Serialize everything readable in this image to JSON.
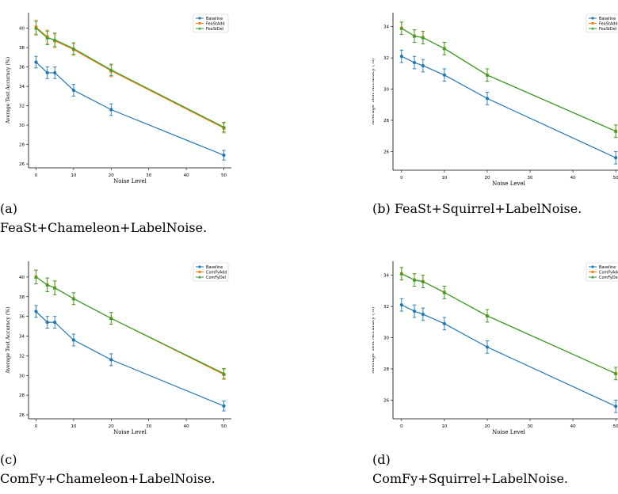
{
  "colors": {
    "baseline": "#1f77b4",
    "add": "#ff7f0e",
    "del": "#2ca02c"
  },
  "chart_data": [
    {
      "type": "line",
      "panel_label": "(a)",
      "caption": "FeaSt+Chameleon+LabelNoise.",
      "xlabel": "Noise Level",
      "ylabel": "Average Test Accuracy (%)",
      "xlim": [
        -2,
        52
      ],
      "ylim": [
        25.6,
        41.6
      ],
      "xticks": [
        0,
        10,
        20,
        30,
        40,
        50
      ],
      "yticks": [
        26,
        28,
        30,
        32,
        34,
        36,
        38,
        40
      ],
      "x": [
        0,
        3,
        5,
        10,
        20,
        50
      ],
      "legend_position": "top-right",
      "series": [
        {
          "name": "Baseline",
          "marker": "circle",
          "values": [
            36.5,
            35.4,
            35.4,
            33.6,
            31.6,
            26.9
          ],
          "errors": [
            0.6,
            0.6,
            0.6,
            0.6,
            0.6,
            0.5
          ]
        },
        {
          "name": "FeaStAdd",
          "marker": "square",
          "values": [
            40.1,
            39.1,
            38.7,
            37.8,
            35.6,
            29.7
          ],
          "errors": [
            0.7,
            0.7,
            0.7,
            0.6,
            0.6,
            0.5
          ]
        },
        {
          "name": "FeaStDel",
          "marker": "triangle",
          "values": [
            40.0,
            39.0,
            38.8,
            37.9,
            35.7,
            29.8
          ],
          "errors": [
            0.7,
            0.7,
            0.7,
            0.6,
            0.6,
            0.5
          ]
        }
      ]
    },
    {
      "type": "line",
      "panel_label": "(b) FeaSt+Squirrel+LabelNoise.",
      "caption": "",
      "xlabel": "Noise Level",
      "ylabel": "Average Test Accuracy (%)",
      "xlim": [
        -2,
        52
      ],
      "ylim": [
        24.8,
        34.9
      ],
      "xticks": [
        0,
        10,
        20,
        30,
        40,
        50
      ],
      "yticks": [
        26,
        28,
        30,
        32,
        34
      ],
      "x": [
        0,
        3,
        5,
        10,
        20,
        50
      ],
      "legend_position": "top-right",
      "series": [
        {
          "name": "Baseline",
          "marker": "circle",
          "values": [
            32.1,
            31.7,
            31.5,
            30.9,
            29.4,
            25.6
          ],
          "errors": [
            0.4,
            0.4,
            0.4,
            0.4,
            0.4,
            0.4
          ]
        },
        {
          "name": "FeaStAdd",
          "marker": "square",
          "values": [
            33.9,
            33.4,
            33.3,
            32.6,
            30.9,
            27.3
          ],
          "errors": [
            0.4,
            0.4,
            0.4,
            0.4,
            0.4,
            0.4
          ]
        },
        {
          "name": "FeaStDel",
          "marker": "triangle",
          "values": [
            33.9,
            33.4,
            33.3,
            32.6,
            30.9,
            27.3
          ],
          "errors": [
            0.4,
            0.4,
            0.4,
            0.4,
            0.4,
            0.4
          ]
        }
      ]
    },
    {
      "type": "line",
      "panel_label": "(c)",
      "caption": "ComFy+Chameleon+LabelNoise.",
      "xlabel": "Noise Level",
      "ylabel": "Average Test Accuracy (%)",
      "xlim": [
        -2,
        52
      ],
      "ylim": [
        25.6,
        41.6
      ],
      "xticks": [
        0,
        10,
        20,
        30,
        40,
        50
      ],
      "yticks": [
        26,
        28,
        30,
        32,
        34,
        36,
        38,
        40
      ],
      "x": [
        0,
        3,
        5,
        10,
        20,
        50
      ],
      "legend_position": "top-right",
      "series": [
        {
          "name": "Baseline",
          "marker": "circle",
          "values": [
            36.5,
            35.4,
            35.4,
            33.6,
            31.6,
            26.9
          ],
          "errors": [
            0.6,
            0.6,
            0.6,
            0.6,
            0.6,
            0.5
          ]
        },
        {
          "name": "ComFyAdd",
          "marker": "square",
          "values": [
            40.0,
            39.2,
            38.9,
            37.8,
            35.8,
            30.1
          ],
          "errors": [
            0.7,
            0.7,
            0.7,
            0.6,
            0.6,
            0.5
          ]
        },
        {
          "name": "ComFyDel",
          "marker": "triangle",
          "values": [
            40.0,
            39.2,
            38.9,
            37.8,
            35.8,
            30.2
          ],
          "errors": [
            0.7,
            0.7,
            0.7,
            0.6,
            0.6,
            0.5
          ]
        }
      ]
    },
    {
      "type": "line",
      "panel_label": "(d)",
      "caption": "ComFy+Squirrel+LabelNoise.",
      "xlabel": "Noise Level",
      "ylabel": "Average Test Accuracy (%)",
      "xlim": [
        -2,
        52
      ],
      "ylim": [
        24.8,
        34.9
      ],
      "xticks": [
        0,
        10,
        20,
        30,
        40,
        50
      ],
      "yticks": [
        26,
        28,
        30,
        32,
        34
      ],
      "x": [
        0,
        3,
        5,
        10,
        20,
        50
      ],
      "legend_position": "top-right",
      "series": [
        {
          "name": "Baseline",
          "marker": "circle",
          "values": [
            32.1,
            31.7,
            31.5,
            30.9,
            29.4,
            25.6
          ],
          "errors": [
            0.4,
            0.4,
            0.4,
            0.4,
            0.4,
            0.4
          ]
        },
        {
          "name": "ComFyAdd",
          "marker": "square",
          "values": [
            34.1,
            33.7,
            33.6,
            32.9,
            31.4,
            27.7
          ],
          "errors": [
            0.4,
            0.4,
            0.4,
            0.4,
            0.4,
            0.4
          ]
        },
        {
          "name": "ComFyDel",
          "marker": "triangle",
          "values": [
            34.1,
            33.7,
            33.6,
            32.9,
            31.4,
            27.7
          ],
          "errors": [
            0.4,
            0.4,
            0.4,
            0.4,
            0.4,
            0.4
          ]
        }
      ]
    }
  ]
}
